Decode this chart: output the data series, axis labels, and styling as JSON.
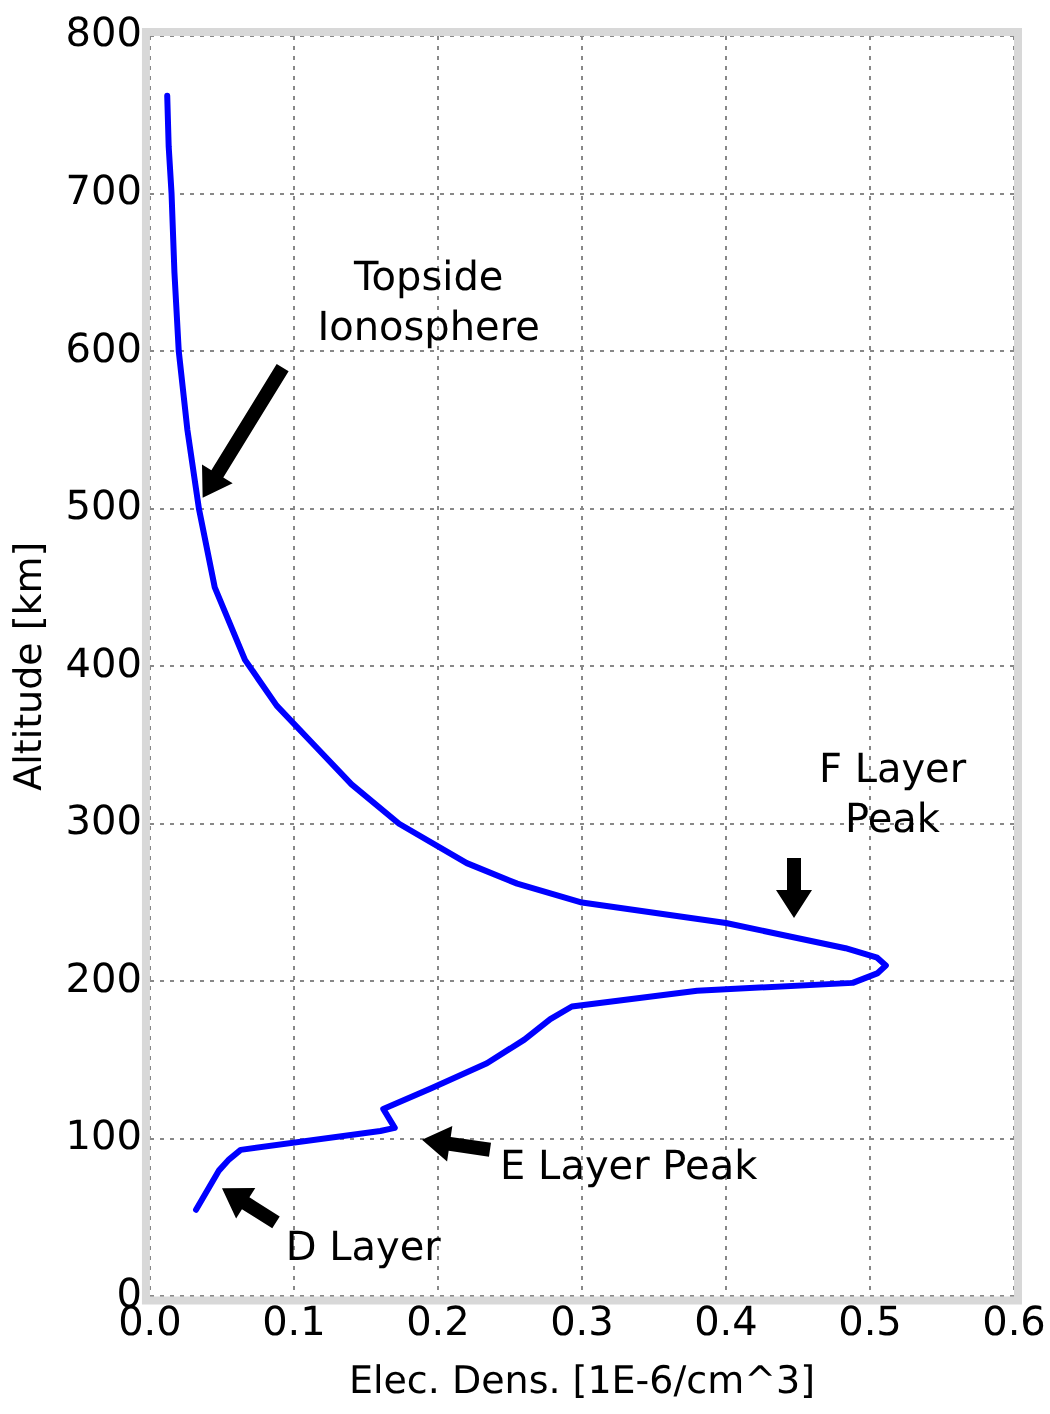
{
  "chart_data": {
    "type": "line",
    "xlabel": "Elec. Dens. [1E-6/cm^3]",
    "ylabel": "Altitude [km]",
    "color": "#0000ff",
    "x": [
      0.012,
      0.013,
      0.015,
      0.017,
      0.02,
      0.026,
      0.034,
      0.045,
      0.066,
      0.088,
      0.114,
      0.14,
      0.173,
      0.22,
      0.255,
      0.3,
      0.4,
      0.483,
      0.505,
      0.511,
      0.505,
      0.488,
      0.38,
      0.293,
      0.278,
      0.26,
      0.234,
      0.195,
      0.162,
      0.17,
      0.16,
      0.063,
      0.055,
      0.048,
      0.032
    ],
    "values": [
      762,
      730,
      700,
      650,
      600,
      550,
      500,
      450,
      404,
      375,
      350,
      325,
      300,
      275,
      262,
      250,
      237,
      221,
      215,
      210,
      205,
      199,
      194,
      184,
      176,
      163,
      148,
      132,
      119,
      107,
      105,
      93,
      87,
      80,
      55
    ],
    "xlim": [
      0,
      0.6
    ],
    "ylim": [
      0,
      800
    ],
    "xticks": [
      {
        "value": 0,
        "label": "0.0"
      },
      0.1,
      0.2,
      0.3,
      0.4,
      0.5,
      0.6
    ],
    "yticks": [
      0,
      100,
      200,
      300,
      400,
      500,
      600,
      700,
      800
    ],
    "grid": true,
    "annotations": [
      "Topside\nIonosphere",
      "F Layer\nPeak",
      "E Layer Peak",
      "D Layer"
    ]
  }
}
